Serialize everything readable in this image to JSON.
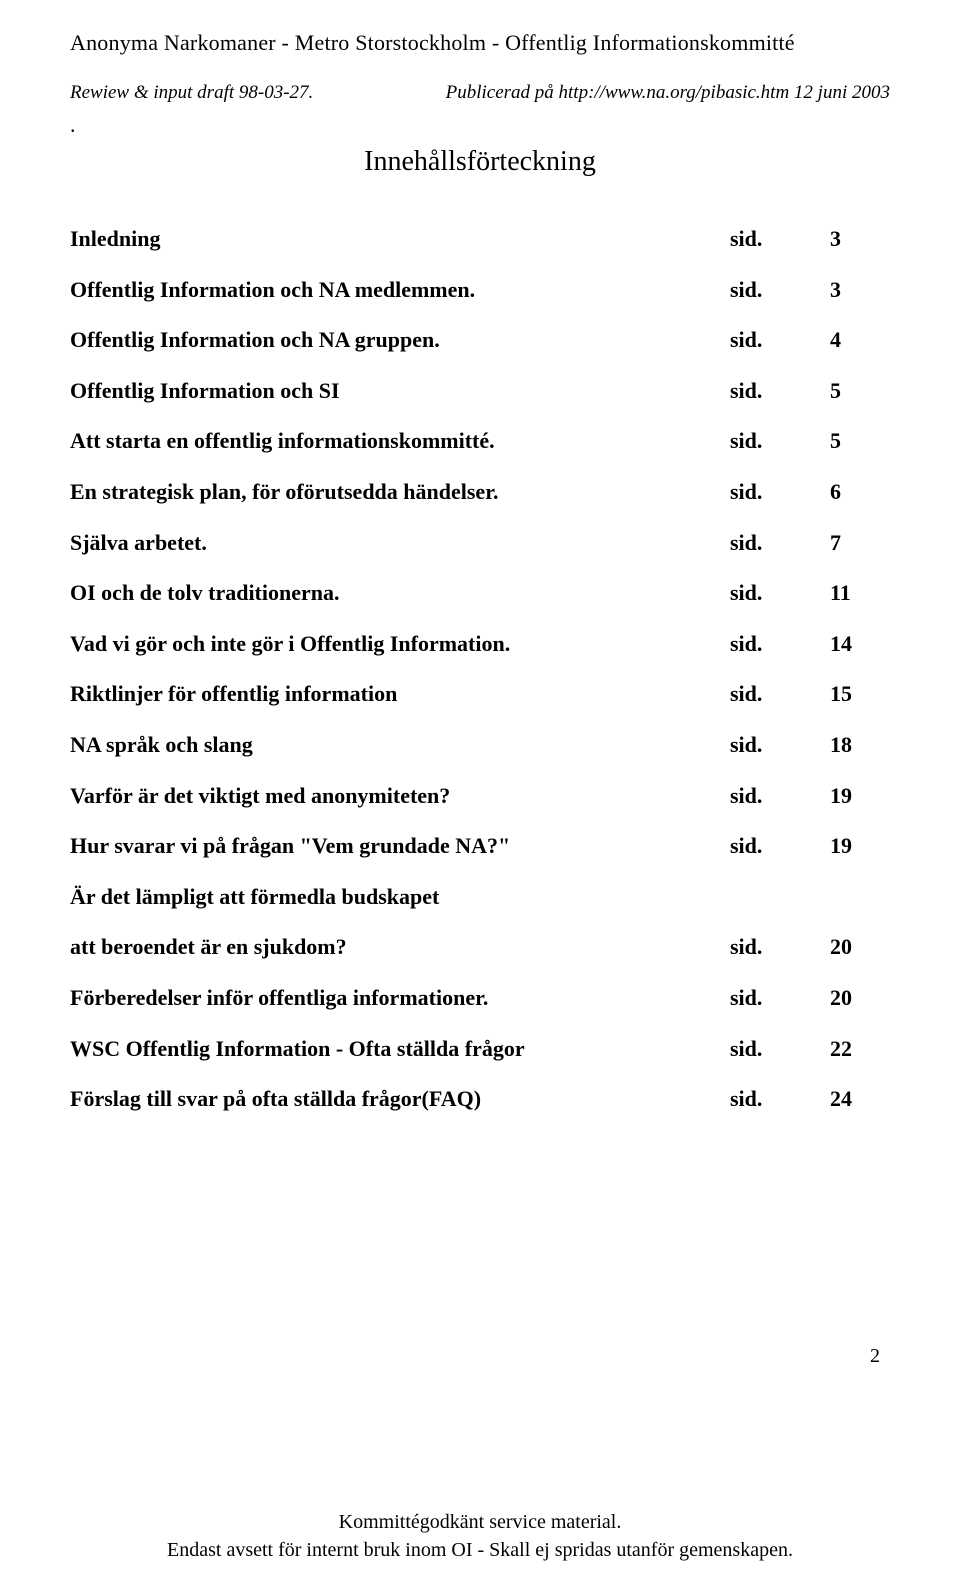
{
  "header": {
    "line": "Anonyma Narkomaner   -   Metro Storstockholm   -   Offentlig Informationskommitté"
  },
  "subhead": {
    "left": "Rewiew & input draft 98-03-27.",
    "right": "Publicerad på http://www.na.org/pibasic.htm  12 juni 2003"
  },
  "dot": ".",
  "toc_title": "Innehållsförteckning",
  "sid_label": "sid.",
  "toc": [
    {
      "title": "Inledning",
      "page": "3"
    },
    {
      "title": "Offentlig Information och NA medlemmen.",
      "page": "3"
    },
    {
      "title": "Offentlig Information och NA gruppen.",
      "page": "4"
    },
    {
      "title": "Offentlig Information och SI",
      "page": "5"
    },
    {
      "title": "Att starta en offentlig informationskommitté.",
      "page": "5"
    },
    {
      "title": "En strategisk plan, för oförutsedda händelser.",
      "page": "6"
    },
    {
      "title": "Själva arbetet.",
      "page": "7"
    },
    {
      "title": "OI och de tolv traditionerna.",
      "page": "11"
    },
    {
      "title": "Vad vi gör och inte gör i Offentlig Information.",
      "page": "14"
    },
    {
      "title": "Riktlinjer för offentlig information",
      "page": "15"
    },
    {
      "title": "NA språk och slang",
      "page": "18"
    },
    {
      "title": "Varför är det viktigt med anonymiteten?",
      "page": "19"
    },
    {
      "title": "Hur svarar vi på frågan \"Vem grundade NA?\"",
      "page": "19"
    },
    {
      "title": "Är det lämpligt att förmedla budskapet",
      "page": ""
    },
    {
      "title": "att beroendet är en sjukdom?",
      "page": "20"
    },
    {
      "title": "Förberedelser inför offentliga informationer.",
      "page": "20"
    },
    {
      "title": "WSC Offentlig Information - Ofta ställda frågor",
      "page": "22"
    },
    {
      "title": "Förslag till svar på ofta ställda frågor(FAQ)",
      "page": "24"
    }
  ],
  "page_number": "2",
  "footer": {
    "line1": "Kommittégodkänt service material.",
    "line2": "Endast avsett för internt bruk inom OI - Skall ej spridas utanför gemenskapen."
  },
  "style": {
    "bg": "#ffffff",
    "fg": "#000000",
    "title_fontsize": 28,
    "body_fontsize": 22,
    "subhead_fontsize": 19
  }
}
